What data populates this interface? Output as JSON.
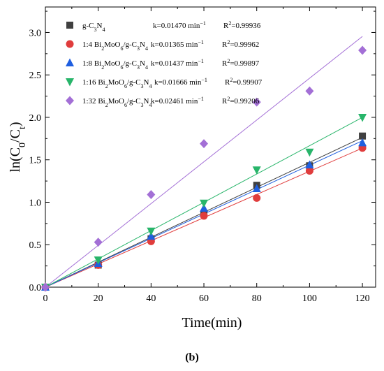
{
  "chart_data": {
    "type": "scatter",
    "xlabel": "Time(min)",
    "ylabel": "ln(C0/Ct)",
    "xlim": [
      0,
      125
    ],
    "ylim": [
      0,
      3.3
    ],
    "x_ticks": [
      0,
      20,
      40,
      60,
      80,
      100,
      120
    ],
    "y_ticks": [
      0.0,
      0.5,
      1.0,
      1.5,
      2.0,
      2.5,
      3.0
    ],
    "x": [
      0,
      20,
      40,
      60,
      80,
      100,
      120
    ],
    "grid": false,
    "legend_position": "top-left",
    "series": [
      {
        "name": "g-C3N4",
        "marker": "square",
        "color": "#404040",
        "values": [
          0,
          0.26,
          0.57,
          0.87,
          1.2,
          1.43,
          1.78
        ],
        "k": "k=0.01470 min",
        "r2": "R²=0.99936",
        "slope": 0.0147
      },
      {
        "name": "1:4 Bi2MoO6/g-C3N4",
        "marker": "circle",
        "color": "#e03c3c",
        "values": [
          0,
          0.26,
          0.54,
          0.84,
          1.05,
          1.37,
          1.64
        ],
        "k": "k=0.01365 min",
        "r2": "R²=0.99962",
        "slope": 0.01365
      },
      {
        "name": "1:8 Bi2MoO6/g-C3N4",
        "marker": "triangle-up",
        "color": "#1f5fe0",
        "values": [
          0,
          0.28,
          0.6,
          0.93,
          1.16,
          1.44,
          1.7
        ],
        "k": "k=0.01437 min",
        "r2": "R²=0.99897",
        "slope": 0.01437
      },
      {
        "name": "1:16 Bi2MoO6/g-C3N4",
        "marker": "triangle-down",
        "color": "#28b56a",
        "values": [
          0,
          0.32,
          0.66,
          0.99,
          1.38,
          1.59,
          2.0
        ],
        "k": "k=0.01666 min",
        "r2": "R²=0.99907",
        "slope": 0.01666
      },
      {
        "name": "1:32 Bi2MoO6/g-C3N4",
        "marker": "diamond",
        "color": "#a36fd6",
        "values": [
          0,
          0.53,
          1.09,
          1.69,
          2.18,
          2.31,
          2.79
        ],
        "k": "k=0.02461 min",
        "r2": "R²=0.99206",
        "slope": 0.02461
      }
    ]
  },
  "caption": "(b)"
}
